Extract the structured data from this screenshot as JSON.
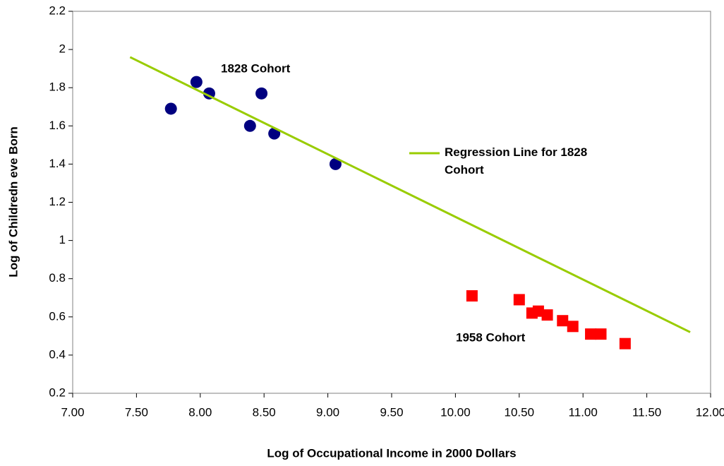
{
  "chart_data": {
    "type": "scatter",
    "x_label": "Log of Occupational Income in 2000 Dollars",
    "y_label": "Log of Childredn eve Born",
    "xlim": [
      7.0,
      12.0
    ],
    "ylim": [
      0.2,
      2.2
    ],
    "xticks": [
      {
        "value": 7.0,
        "label": "7.00"
      },
      {
        "value": 7.5,
        "label": "7.50"
      },
      {
        "value": 8.0,
        "label": "8.00"
      },
      {
        "value": 8.5,
        "label": "8.50"
      },
      {
        "value": 9.0,
        "label": "9.00"
      },
      {
        "value": 9.5,
        "label": "9.50"
      },
      {
        "value": 10.0,
        "label": "10.00"
      },
      {
        "value": 10.5,
        "label": "10.50"
      },
      {
        "value": 11.0,
        "label": "11.00"
      },
      {
        "value": 11.5,
        "label": "11.50"
      },
      {
        "value": 12.0,
        "label": "12.00"
      }
    ],
    "yticks": [
      0.2,
      0.4,
      0.6,
      0.8,
      1,
      1.2,
      1.4,
      1.6,
      1.8,
      2,
      2.2
    ],
    "grid": false,
    "series": [
      {
        "name": "1828 Cohort",
        "color": "#000080",
        "marker": "circle",
        "x": [
          7.77,
          7.97,
          8.07,
          8.48,
          8.39,
          8.58,
          9.06
        ],
        "values": [
          1.69,
          1.83,
          1.77,
          1.77,
          1.6,
          1.56,
          1.4
        ]
      },
      {
        "name": "1958 Cohort",
        "color": "#ff0000",
        "marker": "square",
        "x": [
          10.13,
          10.5,
          10.6,
          10.65,
          10.72,
          10.84,
          10.92,
          11.06,
          11.14,
          11.33
        ],
        "values": [
          0.71,
          0.69,
          0.62,
          0.63,
          0.61,
          0.58,
          0.55,
          0.51,
          0.51,
          0.46
        ]
      },
      {
        "name": "Regression Line for 1828 Cohort",
        "color": "#99cc00",
        "type": "line",
        "legend": true,
        "x": [
          7.45,
          11.84
        ],
        "values": [
          1.96,
          0.52
        ]
      }
    ]
  }
}
